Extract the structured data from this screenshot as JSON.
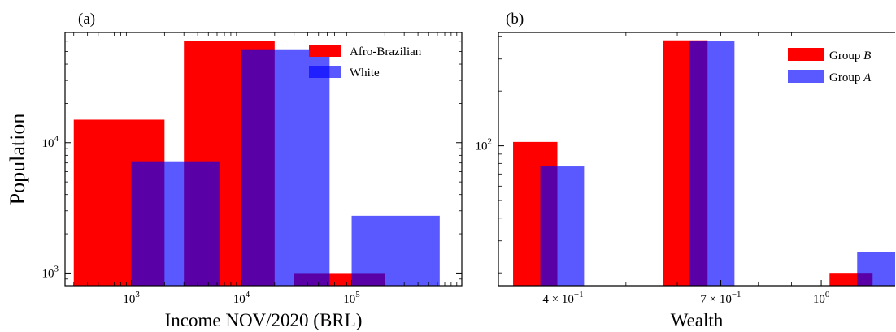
{
  "figure": {
    "panels": [
      "(a)",
      "(b)"
    ]
  },
  "chart_data": [
    {
      "type": "bar",
      "panel": "(a)",
      "title": "",
      "xlabel": "Income NOV/2020 (BRL)",
      "ylabel": "Population",
      "xscale": "log",
      "yscale": "log",
      "xlim": [
        250,
        1000000
      ],
      "ylim": [
        800,
        70000
      ],
      "xticks": [
        {
          "value": 1000,
          "base": "10",
          "exp": "3"
        },
        {
          "value": 10000,
          "base": "10",
          "exp": "4"
        },
        {
          "value": 100000,
          "base": "10",
          "exp": "5"
        }
      ],
      "yticks": [
        {
          "value": 1000,
          "base": "10",
          "exp": "3"
        },
        {
          "value": 10000,
          "base": "10",
          "exp": "4"
        }
      ],
      "legend_position": "top-right",
      "series": [
        {
          "name": "Afro-Brazilian",
          "color": "#ff0000",
          "opacity": 1.0,
          "bars": [
            {
              "x0": 300,
              "x1": 2000,
              "value": 15000
            },
            {
              "x0": 3000,
              "x1": 20000,
              "value": 60000
            },
            {
              "x0": 30000,
              "x1": 200000,
              "value": 1000
            }
          ]
        },
        {
          "name": "White",
          "color": "#0000ff",
          "opacity": 0.65,
          "bars": [
            {
              "x0": 1000,
              "x1": 6300,
              "value": 7200
            },
            {
              "x0": 10000,
              "x1": 63000,
              "value": 52000
            },
            {
              "x0": 100000,
              "x1": 630000,
              "value": 2750
            }
          ]
        }
      ]
    },
    {
      "type": "bar",
      "panel": "(b)",
      "title": "",
      "xlabel": "Wealth",
      "ylabel": "",
      "xscale": "log",
      "yscale": "log",
      "xlim": [
        0.318,
        1.3
      ],
      "ylim": [
        17,
        420
      ],
      "xticks": [
        {
          "value": 0.4,
          "coef": "4",
          "base": "10",
          "exp": "−1"
        },
        {
          "value": 0.7,
          "coef": "7",
          "base": "10",
          "exp": "−1"
        },
        {
          "value": 1.0,
          "coef": "",
          "base": "10",
          "exp": "0"
        }
      ],
      "yticks": [
        {
          "value": 100,
          "base": "10",
          "exp": "2"
        }
      ],
      "legend_position": "top-right",
      "series": [
        {
          "name": "Group ",
          "name_italic": "B",
          "color": "#ff0000",
          "opacity": 1.0,
          "bars": [
            {
              "x0": 0.335,
              "x1": 0.392,
              "value": 105
            },
            {
              "x0": 0.57,
              "x1": 0.668,
              "value": 380
            },
            {
              "x0": 1.03,
              "x1": 1.2,
              "value": 20
            }
          ]
        },
        {
          "name": "Group ",
          "name_italic": "A",
          "color": "#0000ff",
          "opacity": 0.65,
          "bars": [
            {
              "x0": 0.369,
              "x1": 0.431,
              "value": 77
            },
            {
              "x0": 0.627,
              "x1": 0.735,
              "value": 375
            },
            {
              "x0": 1.136,
              "x1": 1.3,
              "value": 26
            }
          ]
        }
      ]
    }
  ]
}
